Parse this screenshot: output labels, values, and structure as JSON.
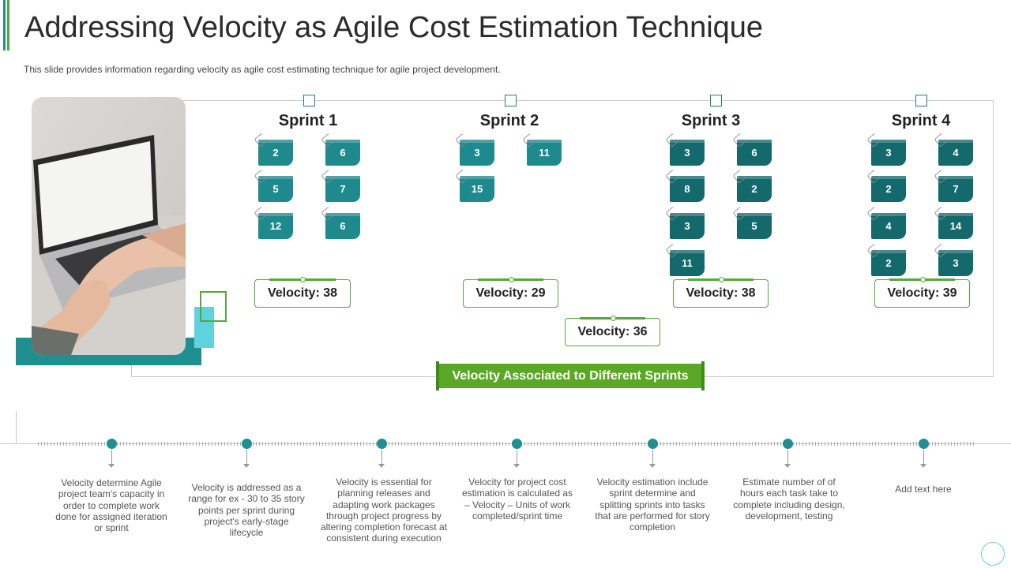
{
  "header": {
    "title": "Addressing Velocity as Agile Cost Estimation Technique",
    "subtitle": "This slide provides information regarding velocity as agile cost estimating technique for agile project development."
  },
  "sprints": [
    {
      "name": "Sprint 1",
      "points": [
        "2",
        "6",
        "5",
        "7",
        "12",
        "6"
      ],
      "velocity": "Velocity: 38"
    },
    {
      "name": "Sprint 2",
      "points": [
        "3",
        "11",
        "15"
      ],
      "velocity": "Velocity: 29"
    },
    {
      "name": "Sprint 3",
      "points": [
        "3",
        "6",
        "8",
        "2",
        "3",
        "5",
        "11"
      ],
      "velocity": "Velocity: 38"
    },
    {
      "name": "Sprint 4",
      "points": [
        "3",
        "4",
        "2",
        "7",
        "4",
        "14",
        "2",
        "3"
      ],
      "velocity": "Velocity: 39"
    }
  ],
  "average_velocity": "Velocity: 36",
  "banner": "Velocity Associated to Different Sprints",
  "timeline": [
    "Velocity determine Agile project team's capacity in order to complete work done for assigned iteration or sprint",
    "Velocity is addressed as a range for ex - 30 to 35 story points per sprint during project's early-stage lifecycle",
    "Velocity is essential for planning releases and adapting work packages through project progress by altering completion forecast at consistent during execution",
    "Velocity for project cost estimation is calculated as – Velocity – Units of work completed/sprint time",
    "Velocity estimation include sprint determine and splitting sprints into tasks that are performed for story completion",
    "Estimate number of of hours each task take to complete including design, development, testing",
    "Add text here"
  ],
  "colors": {
    "teal": "#1f8f91",
    "dark_teal": "#14696d",
    "green": "#56a83a",
    "light_teal": "#5fd3dc"
  },
  "icons": {
    "photo": "laptop-photo",
    "pin": "paperclip-icon"
  }
}
